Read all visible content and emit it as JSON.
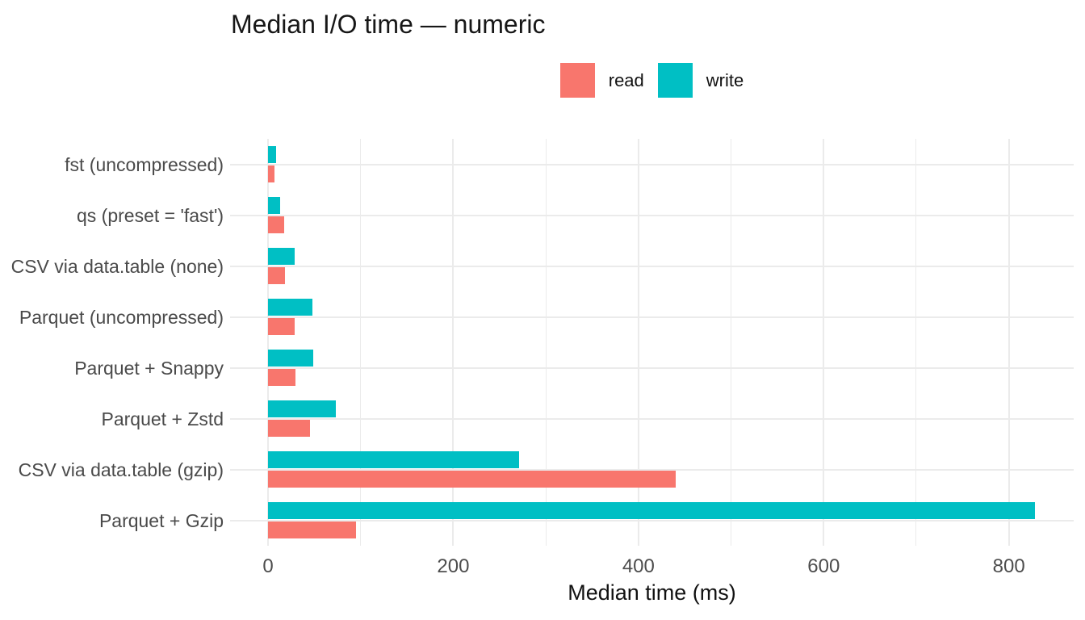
{
  "chart_data": {
    "type": "bar",
    "orientation": "horizontal",
    "grouping": "dodged",
    "title": "Median I/O time — numeric",
    "xlabel": "Median time (ms)",
    "ylabel": "",
    "categories": [
      "fst (uncompressed)",
      "qs (preset = 'fast')",
      "CSV via data.table (none)",
      "Parquet (uncompressed)",
      "Parquet + Snappy",
      "Parquet + Zstd",
      "CSV via data.table (gzip)",
      "Parquet + Gzip"
    ],
    "series": [
      {
        "name": "read",
        "color": "#F8766D",
        "values": [
          7,
          17,
          18,
          29,
          30,
          45,
          440,
          95
        ]
      },
      {
        "name": "write",
        "color": "#00BFC4",
        "values": [
          9,
          13,
          29,
          48,
          49,
          73,
          271,
          828
        ]
      }
    ],
    "bar_order_within_group_top_to_bottom": [
      "write",
      "read"
    ],
    "xlim": [
      -41,
      870
    ],
    "x_ticks": [
      0,
      200,
      400,
      600,
      800
    ],
    "x_minor_ticks": [
      100,
      300,
      500,
      700
    ],
    "grid": true,
    "gridline_color": "#EBEBEB",
    "legend_position": "top-center",
    "background_color": "#FFFFFF",
    "axis_text_color": "#4D4D4D"
  }
}
